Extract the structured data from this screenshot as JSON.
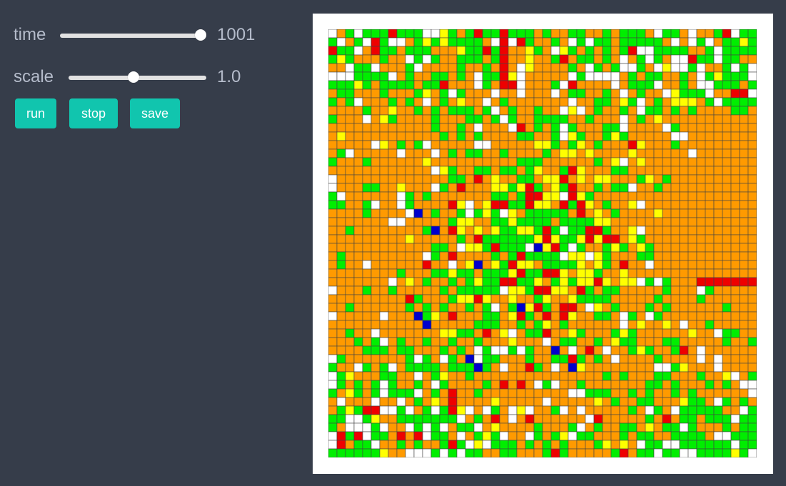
{
  "controls": {
    "time": {
      "label": "time",
      "value": "1001",
      "level": 1.0
    },
    "scale": {
      "label": "scale",
      "value": "1.0",
      "level": 0.47
    },
    "buttons": {
      "run": "run",
      "stop": "stop",
      "save": "save"
    }
  },
  "grid": {
    "rows": 50,
    "cols": 50,
    "colors": {
      "background": "#ff9a00",
      "green": "#00ee00",
      "white": "#ffffff",
      "red": "#ee0000",
      "yellow": "#ffff00",
      "blue": "#0000cc",
      "border": "#444444"
    }
  }
}
